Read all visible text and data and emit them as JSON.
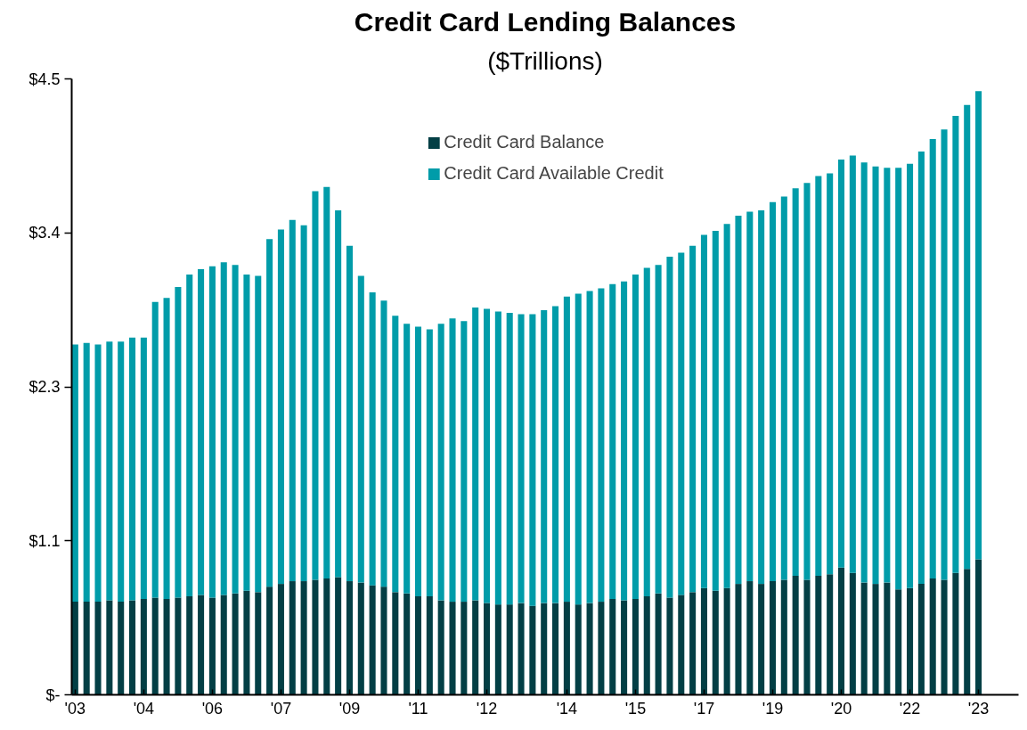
{
  "chart_data": {
    "type": "bar",
    "title": "Credit Card Lending Balances",
    "subtitle": "($Trillions)",
    "stacked": true,
    "categories": [
      "'03",
      null,
      null,
      null,
      null,
      null,
      "'04",
      null,
      null,
      null,
      null,
      null,
      "'06",
      null,
      null,
      null,
      null,
      null,
      "'07",
      null,
      null,
      null,
      null,
      null,
      "'09",
      null,
      null,
      null,
      null,
      null,
      "'11",
      null,
      null,
      null,
      null,
      null,
      "'12",
      null,
      null,
      null,
      null,
      null,
      null,
      "'14",
      null,
      null,
      null,
      null,
      null,
      "'15",
      null,
      null,
      null,
      null,
      null,
      "'17",
      null,
      null,
      null,
      null,
      null,
      "'19",
      null,
      null,
      null,
      null,
      null,
      "'20",
      null,
      null,
      null,
      null,
      null,
      "'22",
      null,
      null,
      null,
      null,
      null,
      "'23"
    ],
    "series": [
      {
        "name": "Credit Card Balance",
        "color": "#033f45",
        "values": [
          0.68,
          0.68,
          0.68,
          0.69,
          0.68,
          0.69,
          0.7,
          0.71,
          0.7,
          0.71,
          0.72,
          0.73,
          0.71,
          0.73,
          0.74,
          0.76,
          0.75,
          0.79,
          0.81,
          0.83,
          0.83,
          0.84,
          0.85,
          0.86,
          0.83,
          0.82,
          0.8,
          0.79,
          0.75,
          0.74,
          0.72,
          0.72,
          0.69,
          0.68,
          0.68,
          0.69,
          0.67,
          0.66,
          0.66,
          0.67,
          0.65,
          0.67,
          0.67,
          0.68,
          0.66,
          0.67,
          0.68,
          0.7,
          0.69,
          0.7,
          0.72,
          0.74,
          0.71,
          0.73,
          0.75,
          0.78,
          0.76,
          0.78,
          0.81,
          0.83,
          0.81,
          0.83,
          0.84,
          0.87,
          0.84,
          0.87,
          0.88,
          0.93,
          0.89,
          0.82,
          0.81,
          0.82,
          0.77,
          0.78,
          0.81,
          0.85,
          0.84,
          0.89,
          0.92,
          0.99
        ]
      },
      {
        "name": "Credit Card Available Credit",
        "color": "#009ca9",
        "values": [
          1.88,
          1.89,
          1.88,
          1.89,
          1.9,
          1.92,
          1.91,
          2.16,
          2.2,
          2.27,
          2.35,
          2.38,
          2.42,
          2.43,
          2.4,
          2.31,
          2.31,
          2.54,
          2.59,
          2.64,
          2.6,
          2.84,
          2.86,
          2.68,
          2.45,
          2.24,
          2.14,
          2.09,
          2.02,
          1.97,
          1.97,
          1.95,
          2.02,
          2.07,
          2.05,
          2.14,
          2.15,
          2.14,
          2.13,
          2.11,
          2.13,
          2.14,
          2.17,
          2.23,
          2.27,
          2.28,
          2.29,
          2.3,
          2.33,
          2.37,
          2.4,
          2.4,
          2.49,
          2.5,
          2.53,
          2.58,
          2.63,
          2.66,
          2.69,
          2.7,
          2.73,
          2.77,
          2.8,
          2.83,
          2.9,
          2.92,
          2.93,
          2.98,
          3.05,
          3.07,
          3.05,
          3.03,
          3.08,
          3.1,
          3.16,
          3.21,
          3.29,
          3.34,
          3.39,
          3.42
        ]
      }
    ],
    "ylim": [
      0,
      4.5
    ],
    "yticks": [
      {
        "value": 0,
        "label": "$-"
      },
      {
        "value": 1.125,
        "label": "$1.1"
      },
      {
        "value": 2.25,
        "label": "$2.3"
      },
      {
        "value": 3.375,
        "label": "$3.4"
      },
      {
        "value": 4.5,
        "label": "$4.5"
      }
    ],
    "grid": false,
    "legend": "top"
  }
}
